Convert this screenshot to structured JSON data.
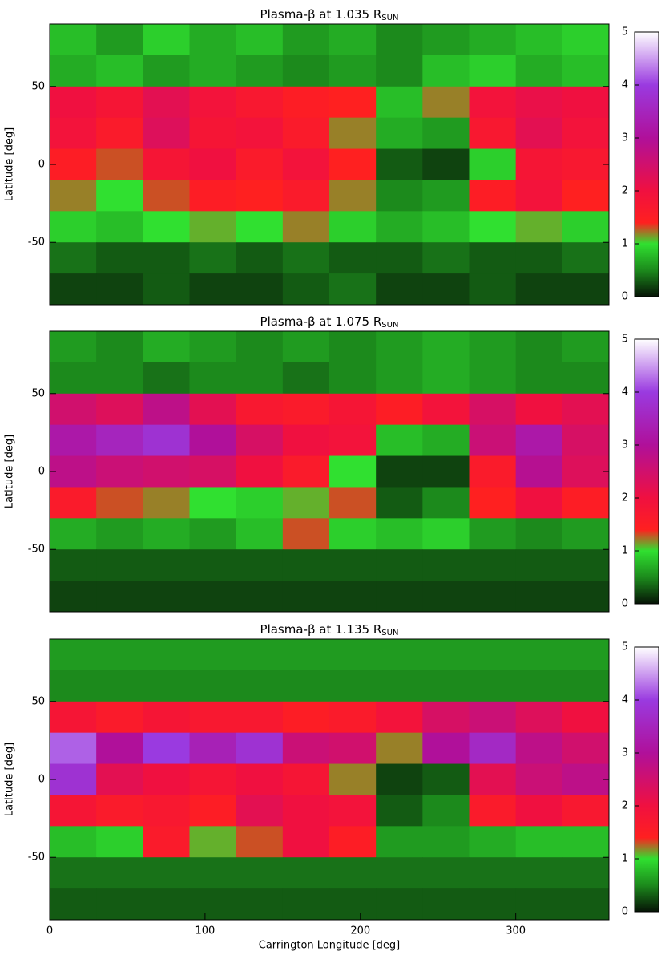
{
  "chart_data": [
    {
      "type": "heatmap",
      "title": "Plasma-β  at  1.035 R",
      "title_subscript": "SUN",
      "ylabel": "Latitude [deg]",
      "x": [
        15,
        45,
        75,
        105,
        135,
        165,
        195,
        225,
        255,
        285,
        315,
        345
      ],
      "y": [
        80,
        60,
        40,
        20,
        0,
        -20,
        -40,
        -60,
        -80
      ],
      "xlim": [
        0,
        360
      ],
      "ylim": [
        -90,
        90
      ],
      "yticks": [
        -50,
        0,
        50
      ],
      "zlim": [
        0,
        5
      ],
      "zticks": [
        0,
        1,
        2,
        3,
        4,
        5
      ],
      "colorscale": [
        [
          0,
          "#061406"
        ],
        [
          0.5,
          "#1c8a1c"
        ],
        [
          1,
          "#30e030"
        ],
        [
          1.4,
          "#ff2020"
        ],
        [
          2,
          "#f01040"
        ],
        [
          3,
          "#b0109a"
        ],
        [
          4,
          "#9a3ae0"
        ],
        [
          5,
          "#ffffff"
        ]
      ],
      "values": [
        [
          0.8,
          0.6,
          0.9,
          0.7,
          0.8,
          0.6,
          0.7,
          0.5,
          0.6,
          0.7,
          0.8,
          0.9
        ],
        [
          0.7,
          0.8,
          0.6,
          0.7,
          0.6,
          0.5,
          0.6,
          0.5,
          0.8,
          0.9,
          0.7,
          0.8
        ],
        [
          2.0,
          1.8,
          2.2,
          1.9,
          1.7,
          1.5,
          1.4,
          0.8,
          1.2,
          1.9,
          2.1,
          2.0
        ],
        [
          1.9,
          1.6,
          2.3,
          1.8,
          1.9,
          1.6,
          1.2,
          0.7,
          0.6,
          1.7,
          2.2,
          1.9
        ],
        [
          1.5,
          1.3,
          1.8,
          2.0,
          1.6,
          1.9,
          1.4,
          0.3,
          0.2,
          0.9,
          1.8,
          1.7
        ],
        [
          1.2,
          1.0,
          1.3,
          1.5,
          1.4,
          1.6,
          1.2,
          0.5,
          0.6,
          1.5,
          1.9,
          1.4
        ],
        [
          0.9,
          0.8,
          1.0,
          1.1,
          1.0,
          1.2,
          0.9,
          0.7,
          0.8,
          1.0,
          1.1,
          0.9
        ],
        [
          0.4,
          0.3,
          0.3,
          0.4,
          0.3,
          0.4,
          0.3,
          0.3,
          0.4,
          0.3,
          0.3,
          0.4
        ],
        [
          0.2,
          0.2,
          0.3,
          0.2,
          0.2,
          0.3,
          0.4,
          0.2,
          0.2,
          0.3,
          0.2,
          0.2
        ]
      ]
    },
    {
      "type": "heatmap",
      "title": "Plasma-β  at  1.075 R",
      "title_subscript": "SUN",
      "ylabel": "Latitude [deg]",
      "x": [
        15,
        45,
        75,
        105,
        135,
        165,
        195,
        225,
        255,
        285,
        315,
        345
      ],
      "y": [
        80,
        60,
        40,
        20,
        0,
        -20,
        -40,
        -60,
        -80
      ],
      "xlim": [
        0,
        360
      ],
      "ylim": [
        -90,
        90
      ],
      "yticks": [
        -50,
        0,
        50
      ],
      "zlim": [
        0,
        5
      ],
      "zticks": [
        0,
        1,
        2,
        3,
        4,
        5
      ],
      "colorscale": [
        [
          0,
          "#061406"
        ],
        [
          0.5,
          "#1c8a1c"
        ],
        [
          1,
          "#30e030"
        ],
        [
          1.4,
          "#ff2020"
        ],
        [
          2,
          "#f01040"
        ],
        [
          3,
          "#b0109a"
        ],
        [
          4,
          "#9a3ae0"
        ],
        [
          5,
          "#ffffff"
        ]
      ],
      "values": [
        [
          0.6,
          0.5,
          0.7,
          0.6,
          0.5,
          0.6,
          0.5,
          0.6,
          0.7,
          0.6,
          0.5,
          0.6
        ],
        [
          0.5,
          0.5,
          0.4,
          0.5,
          0.5,
          0.4,
          0.5,
          0.6,
          0.7,
          0.6,
          0.5,
          0.5
        ],
        [
          2.5,
          2.3,
          2.8,
          2.2,
          1.7,
          1.6,
          1.8,
          1.5,
          1.9,
          2.4,
          2.0,
          2.2
        ],
        [
          3.2,
          3.5,
          3.8,
          3.0,
          2.4,
          2.0,
          1.9,
          0.8,
          0.7,
          2.6,
          3.2,
          2.4
        ],
        [
          2.8,
          2.6,
          2.5,
          2.4,
          2.0,
          1.6,
          1.0,
          0.2,
          0.2,
          1.6,
          2.9,
          2.3
        ],
        [
          1.6,
          1.3,
          1.2,
          1.0,
          0.9,
          1.1,
          1.3,
          0.3,
          0.5,
          1.4,
          2.0,
          1.5
        ],
        [
          0.7,
          0.6,
          0.7,
          0.6,
          0.8,
          1.3,
          0.9,
          0.8,
          0.9,
          0.6,
          0.5,
          0.6
        ],
        [
          0.3,
          0.3,
          0.3,
          0.3,
          0.3,
          0.3,
          0.3,
          0.3,
          0.3,
          0.3,
          0.3,
          0.3
        ],
        [
          0.2,
          0.2,
          0.2,
          0.2,
          0.2,
          0.2,
          0.2,
          0.2,
          0.2,
          0.2,
          0.2,
          0.2
        ]
      ]
    },
    {
      "type": "heatmap",
      "title": "Plasma-β  at  1.135 R",
      "title_subscript": "SUN",
      "ylabel": "Latitude [deg]",
      "xlabel": "Carrington Longitude [deg]",
      "x": [
        15,
        45,
        75,
        105,
        135,
        165,
        195,
        225,
        255,
        285,
        315,
        345
      ],
      "y": [
        80,
        60,
        40,
        20,
        0,
        -20,
        -40,
        -60,
        -80
      ],
      "xlim": [
        0,
        360
      ],
      "ylim": [
        -90,
        90
      ],
      "xticks": [
        0,
        100,
        200,
        300
      ],
      "yticks": [
        -50,
        0,
        50
      ],
      "zlim": [
        0,
        5
      ],
      "zticks": [
        0,
        1,
        2,
        3,
        4,
        5
      ],
      "colorscale": [
        [
          0,
          "#061406"
        ],
        [
          0.5,
          "#1c8a1c"
        ],
        [
          1,
          "#30e030"
        ],
        [
          1.4,
          "#ff2020"
        ],
        [
          2,
          "#f01040"
        ],
        [
          3,
          "#b0109a"
        ],
        [
          4,
          "#9a3ae0"
        ],
        [
          5,
          "#ffffff"
        ]
      ],
      "values": [
        [
          0.6,
          0.6,
          0.6,
          0.6,
          0.6,
          0.6,
          0.6,
          0.6,
          0.6,
          0.6,
          0.6,
          0.6
        ],
        [
          0.5,
          0.5,
          0.5,
          0.5,
          0.5,
          0.5,
          0.5,
          0.5,
          0.5,
          0.5,
          0.5,
          0.5
        ],
        [
          1.8,
          1.6,
          1.8,
          1.7,
          1.7,
          1.5,
          1.6,
          1.9,
          2.4,
          2.6,
          2.3,
          2.0
        ],
        [
          4.2,
          3.0,
          4.0,
          3.4,
          3.8,
          2.6,
          2.5,
          1.2,
          3.0,
          3.6,
          2.8,
          2.5
        ],
        [
          3.8,
          2.2,
          2.0,
          1.8,
          2.0,
          1.8,
          1.2,
          0.2,
          0.3,
          2.2,
          2.6,
          2.8
        ],
        [
          1.8,
          1.6,
          1.7,
          1.5,
          2.2,
          2.0,
          1.9,
          0.3,
          0.5,
          1.6,
          2.0,
          1.7
        ],
        [
          0.8,
          0.9,
          1.6,
          1.1,
          1.3,
          2.0,
          1.5,
          0.6,
          0.6,
          0.7,
          0.8,
          0.8
        ],
        [
          0.4,
          0.4,
          0.4,
          0.4,
          0.4,
          0.4,
          0.4,
          0.4,
          0.4,
          0.4,
          0.4,
          0.4
        ],
        [
          0.3,
          0.3,
          0.3,
          0.3,
          0.3,
          0.3,
          0.3,
          0.3,
          0.3,
          0.3,
          0.3,
          0.3
        ]
      ]
    }
  ]
}
